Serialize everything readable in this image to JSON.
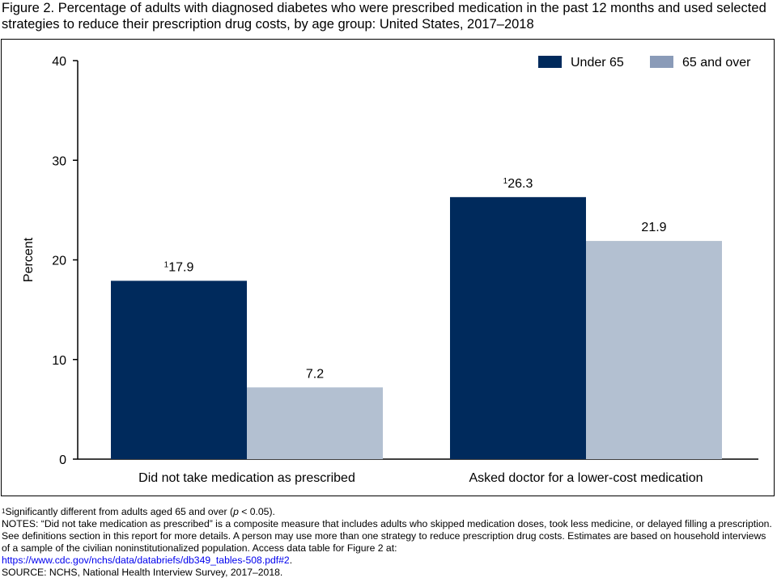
{
  "title": "Figure 2. Percentage of adults with diagnosed diabetes who were prescribed medication in the past 12 months and used selected strategies to reduce their prescription drug costs, by age group: United States, 2017–2018",
  "chart_data": {
    "type": "bar",
    "title": "",
    "xlabel": "",
    "ylabel": "Percent",
    "ylim": [
      0,
      40
    ],
    "yticks": [
      0,
      10,
      20,
      30,
      40
    ],
    "categories": [
      "Did not take medication as prescribed",
      "Asked doctor for a lower-cost medication"
    ],
    "series": [
      {
        "name": "Under 65",
        "color": "#002a5c",
        "values": [
          17.9,
          26.3
        ],
        "labels": [
          "17.9",
          "26.3"
        ],
        "marker": [
          "1",
          "1"
        ]
      },
      {
        "name": "65 and over",
        "color": "#b3c0d1",
        "values": [
          7.2,
          21.9
        ],
        "labels": [
          "7.2",
          "21.9"
        ],
        "marker": [
          "",
          ""
        ]
      }
    ],
    "legend_position": "top-right",
    "legend_swatch_colors": [
      "#002a5c",
      "#8a9bb8"
    ],
    "grid": false
  },
  "footnotes": {
    "sig_marker": "1",
    "sig_text": "Significantly different from adults aged 65 and over (",
    "sig_p": "p",
    "sig_tail": " < 0.05).",
    "notes_text": "NOTES: “Did not take medication as prescribed” is a composite measure that includes adults who skipped medication doses, took less medicine, or delayed filling a prescription. See definitions section in this report for more details. A person may use more than one strategy to reduce prescription drug costs. Estimates are based on household interviews of a sample of the civilian noninstitutionalized population. Access data table for Figure 2 at:",
    "link_text": "https://www.cdc.gov/nchs/data/databriefs/db349_tables-508.pdf#2",
    "link_tail": ".",
    "source_text": "SOURCE: NCHS, National Health Interview Survey, 2017–2018."
  }
}
